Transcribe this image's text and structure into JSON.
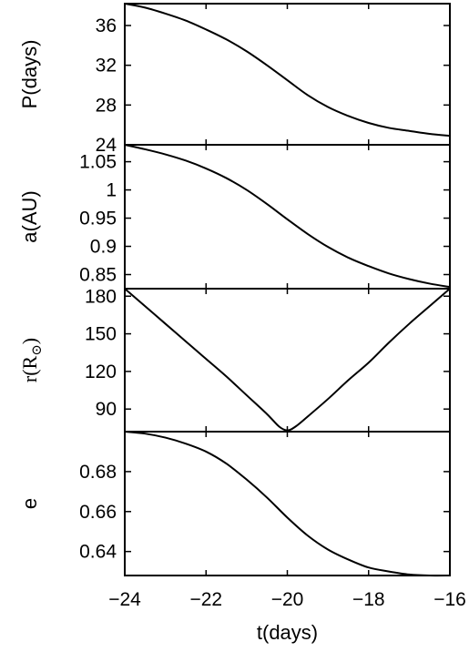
{
  "chart_data": [
    {
      "type": "line",
      "panel": "period",
      "ylabel": "P(days)",
      "ylim": [
        24,
        38.2
      ],
      "yticks": [
        24,
        28,
        32,
        36
      ],
      "ytick_labels": [
        "24",
        "28",
        "32",
        "36"
      ],
      "xlim": [
        -24,
        -16
      ],
      "x": [
        -24,
        -23.5,
        -23,
        -22.5,
        -22,
        -21.5,
        -21,
        -20.5,
        -20,
        -19.5,
        -19,
        -18.5,
        -18,
        -17.5,
        -17,
        -16.5,
        -16
      ],
      "series": [
        {
          "values": [
            38.2,
            37.8,
            37.2,
            36.5,
            35.6,
            34.6,
            33.4,
            32.0,
            30.5,
            29.0,
            27.8,
            26.9,
            26.2,
            25.7,
            25.4,
            25.1,
            24.9
          ]
        }
      ]
    },
    {
      "type": "line",
      "panel": "semi-major-axis",
      "ylabel": "a(AU)",
      "ylim": [
        0.825,
        1.08
      ],
      "yticks": [
        0.85,
        0.9,
        0.95,
        1,
        1.05
      ],
      "ytick_labels": [
        "0.85",
        "0.9",
        "0.95",
        "1",
        "1.05"
      ],
      "xlim": [
        -24,
        -16
      ],
      "x": [
        -24,
        -23.5,
        -23,
        -22.5,
        -22,
        -21.5,
        -21,
        -20.5,
        -20,
        -19.5,
        -19,
        -18.5,
        -18,
        -17.5,
        -17,
        -16.5,
        -16
      ],
      "series": [
        {
          "values": [
            1.08,
            1.072,
            1.063,
            1.052,
            1.038,
            1.021,
            1.0,
            0.975,
            0.948,
            0.922,
            0.899,
            0.88,
            0.865,
            0.852,
            0.842,
            0.834,
            0.828
          ]
        }
      ]
    },
    {
      "type": "line",
      "panel": "separation",
      "ylabel": "r(R",
      "ylabel_subscript": "⊙",
      "ylabel_close": ")",
      "ylim": [
        72,
        186
      ],
      "yticks": [
        90,
        120,
        150,
        180
      ],
      "ytick_labels": [
        "90",
        "120",
        "150",
        "180"
      ],
      "xlim": [
        -24,
        -16
      ],
      "x": [
        -24,
        -23.5,
        -23,
        -22.5,
        -22,
        -21.5,
        -21,
        -20.5,
        -20.2,
        -20,
        -19.8,
        -19.5,
        -19,
        -18.5,
        -18,
        -17.5,
        -17,
        -16.5,
        -16
      ],
      "series": [
        {
          "values": [
            186,
            172,
            158,
            144,
            130,
            116,
            101,
            86,
            76,
            73,
            76,
            84,
            98,
            113,
            127,
            143,
            158,
            172,
            186
          ]
        }
      ]
    },
    {
      "type": "line",
      "panel": "eccentricity",
      "ylabel": "e",
      "xlabel": "t(days)",
      "ylim": [
        0.628,
        0.7
      ],
      "yticks": [
        0.64,
        0.66,
        0.68
      ],
      "ytick_labels": [
        "0.64",
        "0.66",
        "0.68"
      ],
      "xlim": [
        -24,
        -16
      ],
      "xticks": [
        -24,
        -22,
        -20,
        -18,
        -16
      ],
      "xtick_labels": [
        "−24",
        "−22",
        "−20",
        "−18",
        "−16"
      ],
      "x": [
        -24,
        -23.5,
        -23,
        -22.5,
        -22,
        -21.5,
        -21,
        -20.5,
        -20,
        -19.5,
        -19,
        -18.5,
        -18,
        -17.5,
        -17,
        -16.5,
        -16
      ],
      "series": [
        {
          "values": [
            0.7,
            0.699,
            0.697,
            0.694,
            0.69,
            0.684,
            0.676,
            0.667,
            0.657,
            0.648,
            0.641,
            0.636,
            0.632,
            0.63,
            0.6285,
            0.628,
            0.628
          ]
        }
      ]
    }
  ]
}
